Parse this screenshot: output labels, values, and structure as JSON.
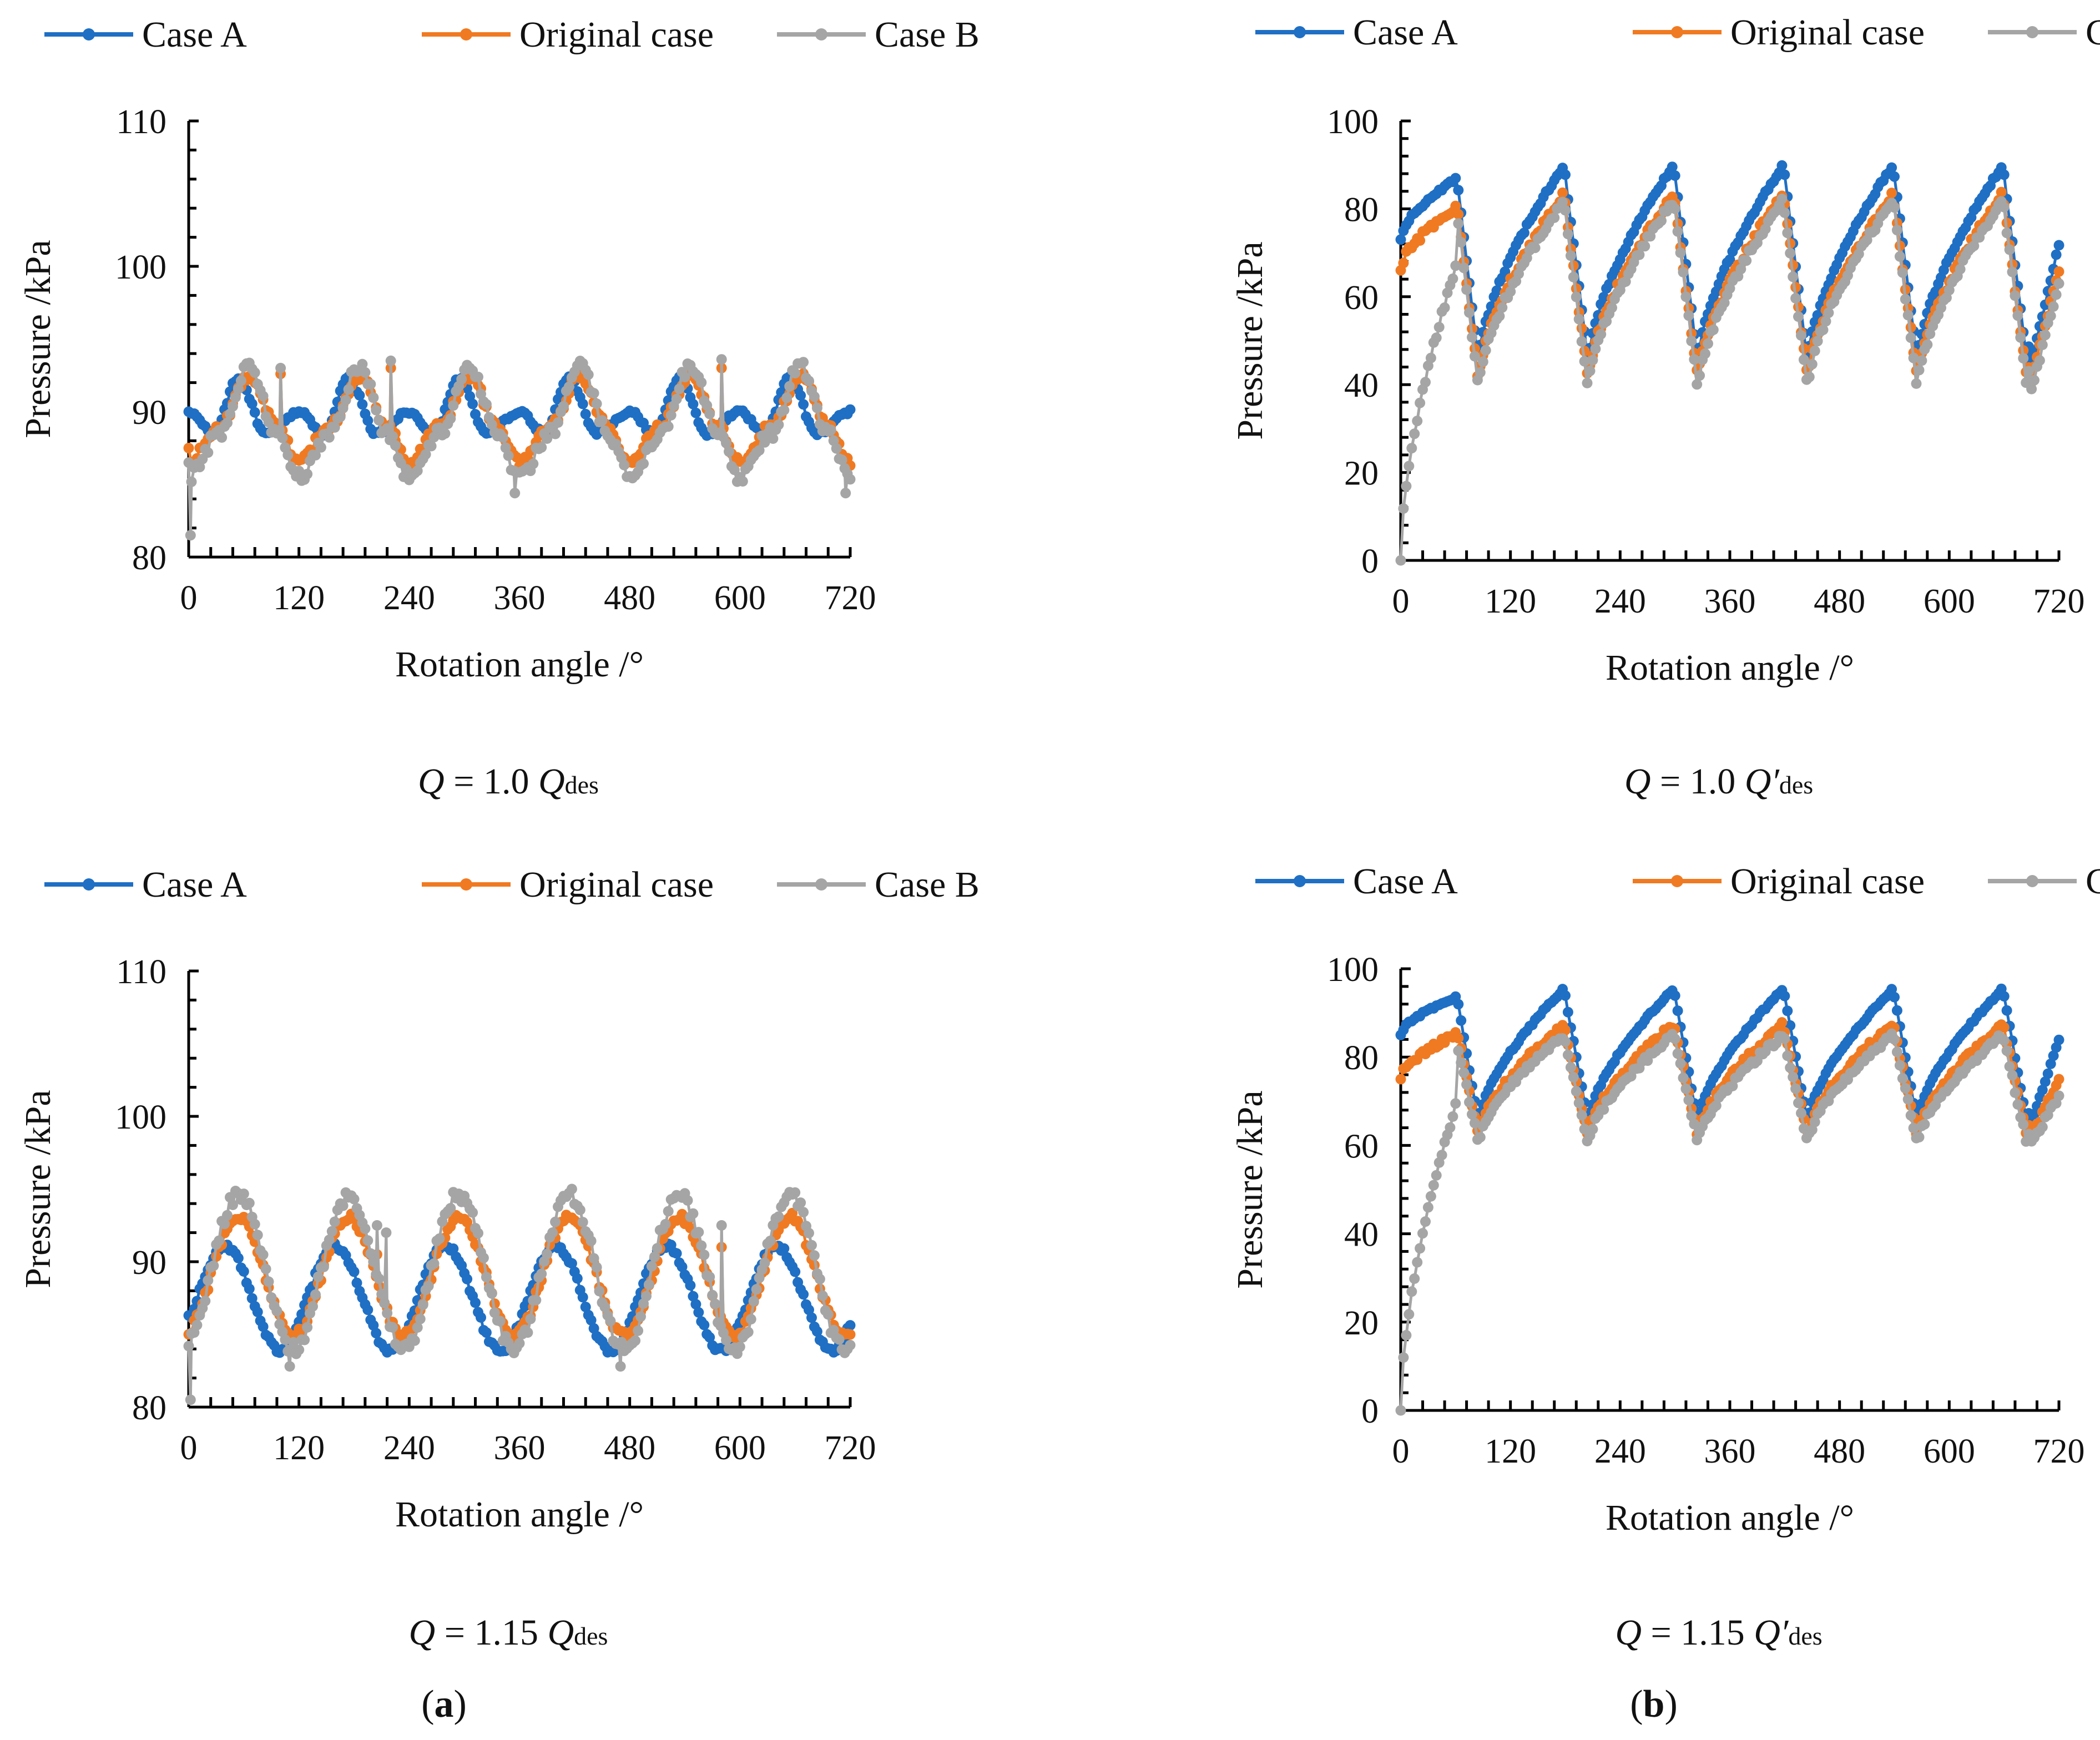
{
  "figure": {
    "panel_a_label": "a",
    "panel_b_label": "b",
    "colors": {
      "case_a": "#1f6fc4",
      "original": "#f07a22",
      "case_b": "#a5a5a5",
      "axis": "#000000"
    }
  },
  "chart_data": [
    {
      "id": "a1",
      "type": "line",
      "caption": {
        "prefix": "Q",
        "mid": " = 1.0 ",
        "q": "Q",
        "prime": "",
        "sub": "des"
      },
      "xlabel": "Rotation angle /°",
      "ylabel": "Pressure /kPa",
      "xlim": [
        0,
        720
      ],
      "ylim": [
        80,
        110
      ],
      "xticks": [
        "0",
        "120",
        "240",
        "360",
        "480",
        "600",
        "720"
      ],
      "yticks": [
        "80",
        "90",
        "100",
        "110"
      ],
      "legend": [
        "Case A",
        "Original case",
        "Case B"
      ],
      "series": [
        {
          "name": "Case A",
          "kind": "bump",
          "start": 90,
          "base": 90,
          "mid": 88.5,
          "peak": 92.3,
          "peakAt": 0.45,
          "phase": 0,
          "noise": 0.15,
          "spikes": []
        },
        {
          "name": "Original case",
          "kind": "bump",
          "start": 87.5,
          "base": 86.5,
          "mid": 89,
          "peak": 92.5,
          "peakAt": 0.55,
          "phase": 0,
          "noise": 0.3,
          "spikes": [
            [
              100,
              92.6
            ],
            [
              225,
              88
            ],
            [
              220,
              93
            ],
            [
              580,
              93
            ]
          ]
        },
        {
          "name": "Case B",
          "kind": "bump",
          "start": 86.5,
          "base": 85.5,
          "mid": 88.5,
          "peak": 93.2,
          "peakAt": 0.55,
          "phase": 0,
          "noise": 0.45,
          "spikes": [
            [
              100,
              93
            ],
            [
              220,
              93.5
            ],
            [
              355,
              84.4
            ],
            [
              580,
              93.6
            ],
            [
              715,
              84.4
            ],
            [
              2,
              81.5
            ]
          ]
        }
      ]
    },
    {
      "id": "b1",
      "type": "line",
      "caption": {
        "prefix": "Q",
        "mid": " = 1.0 ",
        "q": "Q",
        "prime": "′",
        "sub": "des"
      },
      "xlabel": "Rotation angle /°",
      "ylabel": "Pressure /kPa",
      "xlim": [
        0,
        720
      ],
      "ylim": [
        0,
        100
      ],
      "xticks": [
        "0",
        "120",
        "240",
        "360",
        "480",
        "600",
        "720"
      ],
      "yticks": [
        "0",
        "20",
        "40",
        "60",
        "80",
        "100"
      ],
      "legend": [
        "Case A",
        "Original case",
        "Case B"
      ],
      "series": [
        {
          "name": "Case A",
          "kind": "saw",
          "start": 73,
          "trough": 45,
          "peak": 90,
          "endVal": 72,
          "noise": 0.4
        },
        {
          "name": "Original case",
          "kind": "saw",
          "start": 66,
          "trough": 41,
          "peak": 83.5,
          "endVal": 66,
          "noise": 0.8
        },
        {
          "name": "Case B",
          "kind": "saw",
          "start": 0,
          "trough": 39,
          "peak": 82,
          "endVal": 63,
          "noise": 0.8
        }
      ]
    },
    {
      "id": "a2",
      "type": "line",
      "caption": {
        "prefix": "Q",
        "mid": " = 1.15 ",
        "q": "Q",
        "prime": "",
        "sub": "des"
      },
      "xlabel": "Rotation angle /°",
      "ylabel": "Pressure /kPa",
      "xlim": [
        0,
        720
      ],
      "ylim": [
        80,
        110
      ],
      "xticks": [
        "0",
        "120",
        "240",
        "360",
        "480",
        "600",
        "720"
      ],
      "yticks": [
        "80",
        "90",
        "100",
        "110"
      ],
      "legend": [
        "Case A",
        "Original case",
        "Case B"
      ],
      "series": [
        {
          "name": "Case A",
          "kind": "sine",
          "start": 86.3,
          "center": 87.5,
          "amp": 3.6,
          "peakAt": 0.33,
          "noise": 0.2,
          "spikes": []
        },
        {
          "name": "Original case",
          "kind": "sine",
          "start": 85,
          "center": 89,
          "amp": 4.1,
          "peakAt": 0.45,
          "noise": 0.3,
          "spikes": [
            [
              205,
              90.5
            ],
            [
              580,
              91
            ]
          ]
        },
        {
          "name": "Case B",
          "kind": "sine",
          "start": 84.2,
          "center": 89.3,
          "amp": 5.3,
          "peakAt": 0.45,
          "noise": 0.5,
          "spikes": [
            [
              205,
              92.5
            ],
            [
              215,
              92
            ],
            [
              110,
              82.8
            ],
            [
              470,
              82.8
            ],
            [
              580,
              92.5
            ],
            [
              2,
              80.5
            ]
          ]
        }
      ]
    },
    {
      "id": "b2",
      "type": "line",
      "caption": {
        "prefix": "Q",
        "mid": " = 1.15 ",
        "q": "Q",
        "prime": "′",
        "sub": "des"
      },
      "xlabel": "Rotation angle /°",
      "ylabel": "Pressure /kPa",
      "xlim": [
        0,
        720
      ],
      "ylim": [
        0,
        100
      ],
      "xticks": [
        "0",
        "120",
        "240",
        "360",
        "480",
        "600",
        "720"
      ],
      "yticks": [
        "0",
        "20",
        "40",
        "60",
        "80",
        "100"
      ],
      "legend": [
        "Case A",
        "Original case",
        "Case B"
      ],
      "series": [
        {
          "name": "Case A",
          "kind": "saw",
          "start": 85,
          "trough": 65,
          "peak": 95.5,
          "endVal": 84,
          "noise": 0.3
        },
        {
          "name": "Original case",
          "kind": "saw",
          "start": 75,
          "trough": 62,
          "peak": 87.5,
          "endVal": 75,
          "noise": 0.7
        },
        {
          "name": "Case B",
          "kind": "saw",
          "start": 0,
          "trough": 60.5,
          "peak": 85,
          "endVal": 71,
          "noise": 0.7
        }
      ]
    }
  ]
}
